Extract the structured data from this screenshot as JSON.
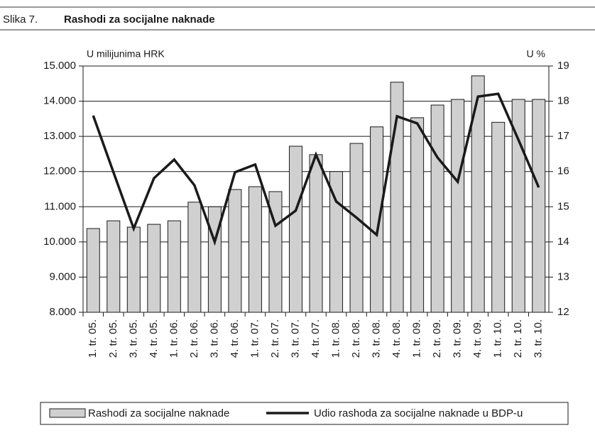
{
  "chart_data": {
    "type": "bar_line",
    "figure_label": "Slika 7.",
    "title": "Rashodi za socijalne naknade",
    "y_label": "U milijunima HRK",
    "y2_label": "U %",
    "categories": [
      "1. tr. 05.",
      "2. tr. 05.",
      "3. tr. 05.",
      "4. tr. 05.",
      "1. tr. 06.",
      "2. tr. 06.",
      "3. tr. 06.",
      "4. tr. 06.",
      "1. tr. 07.",
      "2. tr. 07.",
      "3. tr. 07.",
      "4. tr. 07.",
      "1. tr. 08.",
      "2. tr. 08.",
      "3. tr. 08.",
      "4. tr. 08.",
      "1. tr. 09.",
      "2. tr. 09.",
      "3. tr. 09.",
      "4. tr. 09.",
      "1. tr. 10.",
      "2. tr. 10.",
      "3. tr. 10."
    ],
    "series": [
      {
        "name": "Rashodi za socijalne naknade",
        "type": "bar",
        "color": "#d0d0d0",
        "values": [
          10380,
          10600,
          10420,
          10500,
          10600,
          11130,
          11000,
          11490,
          11570,
          11430,
          12720,
          12480,
          12000,
          12800,
          13270,
          14540,
          13530,
          13890,
          14050,
          14720,
          13400,
          14050,
          14050
        ]
      },
      {
        "name": "Udio rashoda za socijalne naknade u BDP-u",
        "type": "line",
        "color": "#1a1a1a",
        "axis": "y2",
        "values": [
          17.59,
          15.98,
          14.38,
          15.81,
          16.34,
          15.61,
          14.0,
          15.98,
          16.2,
          14.46,
          14.89,
          16.48,
          15.15,
          14.69,
          14.2,
          17.57,
          17.37,
          16.4,
          15.71,
          18.13,
          18.21,
          16.9,
          15.55
        ]
      }
    ],
    "ylim": [
      8000,
      15000
    ],
    "yticks": [
      {
        "value": 8000,
        "label": "8.000"
      },
      {
        "value": 9000,
        "label": "9.000"
      },
      {
        "value": 10000,
        "label": "10.000"
      },
      {
        "value": 11000,
        "label": "11.000"
      },
      {
        "value": 12000,
        "label": "12.000"
      },
      {
        "value": 13000,
        "label": "13.000"
      },
      {
        "value": 14000,
        "label": "14.000"
      },
      {
        "value": 15000,
        "label": "15.000"
      }
    ],
    "y2lim": [
      12,
      19
    ],
    "y2ticks": [
      12,
      13,
      14,
      15,
      16,
      17,
      18,
      19
    ],
    "grid": true,
    "legend": "bottom"
  }
}
